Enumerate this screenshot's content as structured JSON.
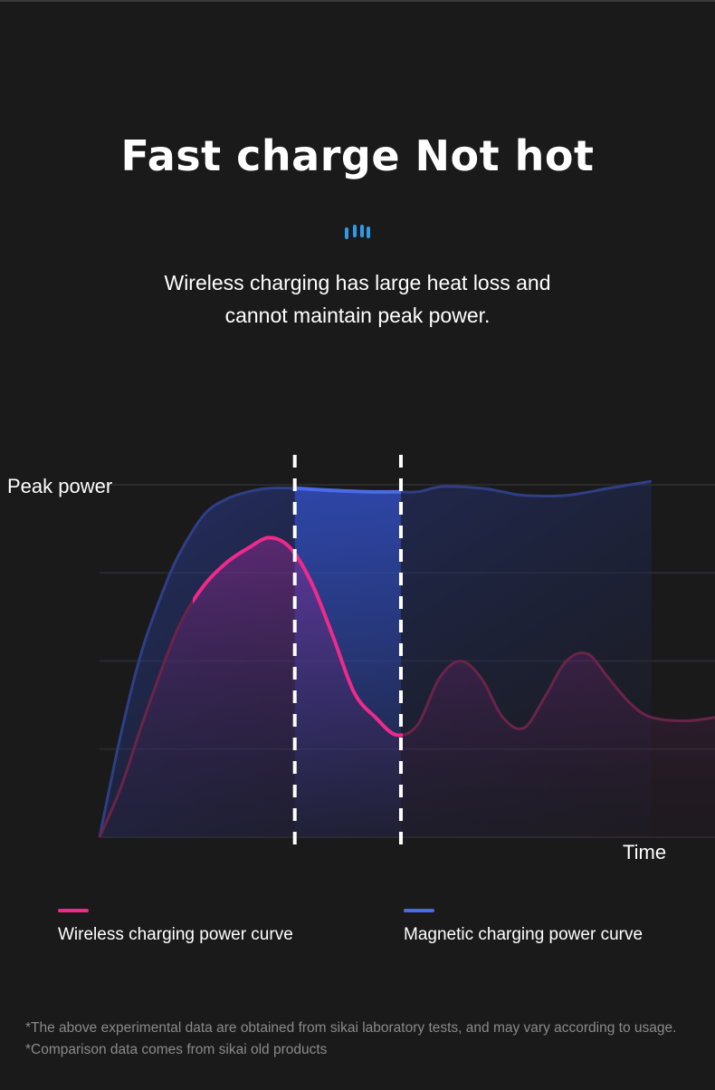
{
  "header": {
    "title": "Fast charge Not hot",
    "subtitle_line1": "Wireless charging has large heat loss and",
    "subtitle_line2": "cannot maintain peak power.",
    "accent_color": "#2f9be8"
  },
  "chart_data": {
    "type": "line",
    "ylabel": "Peak power",
    "xlabel": "Time",
    "grid": true,
    "series": [
      {
        "name": "Magnetic charging power curve",
        "color": "#4a6ae8",
        "points": [
          [
            0,
            0
          ],
          [
            0.5,
            29
          ],
          [
            1,
            53
          ],
          [
            1.6,
            73
          ],
          [
            2,
            83
          ],
          [
            2.5,
            92
          ],
          [
            3,
            96
          ],
          [
            3.5,
            98
          ],
          [
            4,
            99
          ],
          [
            4.6,
            99
          ],
          [
            5.3,
            98.5
          ],
          [
            6.3,
            98
          ],
          [
            7,
            98
          ],
          [
            7.5,
            98
          ],
          [
            8.1,
            99.5
          ],
          [
            9,
            99
          ],
          [
            9.5,
            98
          ],
          [
            10,
            97
          ],
          [
            11,
            97
          ],
          [
            12,
            99
          ],
          [
            13,
            101
          ]
        ]
      },
      {
        "name": "Wireless charging power curve",
        "color": "#ee2a8a",
        "points": [
          [
            0,
            0
          ],
          [
            0.5,
            14
          ],
          [
            1,
            32
          ],
          [
            1.6,
            52
          ],
          [
            2,
            63
          ],
          [
            2.5,
            72
          ],
          [
            3,
            78
          ],
          [
            3.5,
            82
          ],
          [
            4,
            85
          ],
          [
            4.5,
            82
          ],
          [
            5,
            72
          ],
          [
            5.5,
            57
          ],
          [
            6,
            41
          ],
          [
            6.5,
            34
          ],
          [
            7,
            29
          ],
          [
            7.5,
            32
          ],
          [
            8,
            45
          ],
          [
            8.5,
            50
          ],
          [
            9,
            45
          ],
          [
            9.5,
            34
          ],
          [
            10,
            31
          ],
          [
            10.5,
            40
          ],
          [
            11,
            50
          ],
          [
            11.5,
            52
          ],
          [
            12,
            45
          ],
          [
            12.5,
            38
          ],
          [
            13,
            34
          ],
          [
            13.8,
            33
          ],
          [
            14.5,
            34
          ]
        ]
      }
    ],
    "markers": [
      4.6,
      7.1
    ],
    "legend_placement": "bottom"
  },
  "legend": {
    "wireless_color": "#ee2a8a",
    "magnetic_color": "#4a6ae8"
  },
  "footnotes": {
    "line1": "*The above experimental data are obtained from sikai laboratory tests, and may vary according to usage.",
    "line2": "*Comparison data comes from sikai old products"
  }
}
